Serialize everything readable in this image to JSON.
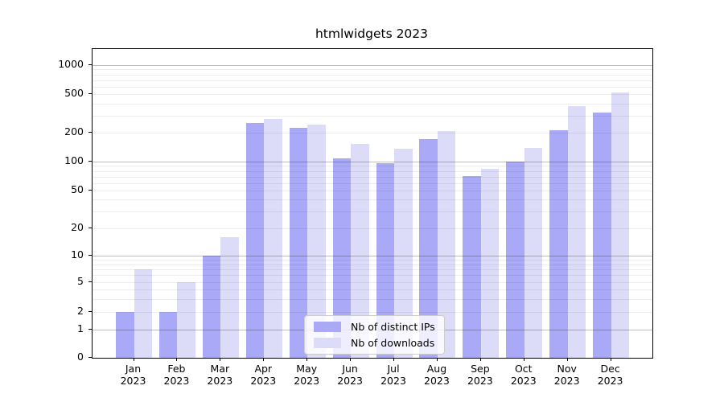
{
  "chart": {
    "title": "htmlwidgets 2023",
    "colors": {
      "ips_bar": "#a9a9f7",
      "downloads_bar": "#dcdcf8",
      "axis": "#000000",
      "legend_border": "#cccccc"
    },
    "legend": {
      "items": [
        {
          "label": "Nb of distinct IPs",
          "series": "ips"
        },
        {
          "label": "Nb of downloads",
          "series": "downloads"
        }
      ]
    }
  },
  "chart_data": {
    "type": "bar",
    "title": "htmlwidgets 2023",
    "categories": [
      "Jan 2023",
      "Feb 2023",
      "Mar 2023",
      "Apr 2023",
      "May 2023",
      "Jun 2023",
      "Jul 2023",
      "Aug 2023",
      "Sep 2023",
      "Oct 2023",
      "Nov 2023",
      "Dec 2023"
    ],
    "series": [
      {
        "name": "Nb of distinct IPs",
        "key": "ips",
        "color": "#a9a9f7",
        "values": [
          2,
          2,
          10,
          250,
          224,
          108,
          96,
          172,
          71,
          100,
          212,
          322
        ]
      },
      {
        "name": "Nb of downloads",
        "key": "downloads",
        "color": "#dcdcf8",
        "values": [
          7,
          5,
          16,
          277,
          242,
          152,
          136,
          208,
          84,
          139,
          378,
          515
        ]
      }
    ],
    "xlabel": "",
    "ylabel": "",
    "yticks": [
      0,
      1,
      2,
      5,
      10,
      20,
      50,
      100,
      200,
      500,
      1000
    ],
    "yscale": "pseudo-log (log spacing above 1, compressed 0-1 baseline)",
    "ylim": [
      0,
      1400
    ],
    "grid": true,
    "grid_major_at": [
      1,
      10,
      100,
      1000
    ],
    "legend_position": "inside lower center"
  }
}
